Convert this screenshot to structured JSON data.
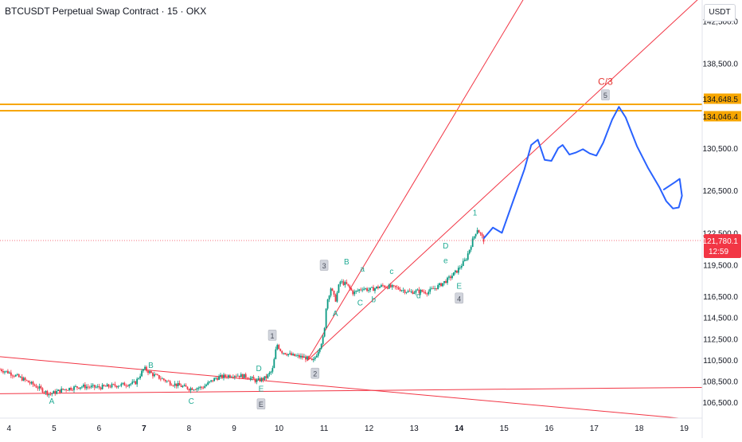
{
  "header": {
    "title": "BTCUSDT Perpetual Swap Contract · 15 · OKX",
    "currency": "USDT"
  },
  "colors": {
    "trendline": "#f23645",
    "horizontal": "#f7a600",
    "projection": "#2962ff",
    "candle_up": "#089981",
    "candle_down": "#f23645",
    "wave_label": "#22ab94",
    "wave_box": "#b2b5be",
    "wave_major": "#e53935"
  },
  "chart_data": {
    "type": "candlestick",
    "x_domain": [
      3.8,
      19.4
    ],
    "y_domain": [
      105000,
      144500
    ],
    "x_ticks": [
      {
        "x": 4,
        "label": "4",
        "bold": false
      },
      {
        "x": 5,
        "label": "5",
        "bold": false
      },
      {
        "x": 6,
        "label": "6",
        "bold": false
      },
      {
        "x": 7,
        "label": "7",
        "bold": true
      },
      {
        "x": 8,
        "label": "8",
        "bold": false
      },
      {
        "x": 9,
        "label": "9",
        "bold": false
      },
      {
        "x": 10,
        "label": "10",
        "bold": false
      },
      {
        "x": 11,
        "label": "11",
        "bold": false
      },
      {
        "x": 12,
        "label": "12",
        "bold": false
      },
      {
        "x": 13,
        "label": "13",
        "bold": false
      },
      {
        "x": 14,
        "label": "14",
        "bold": true
      },
      {
        "x": 15,
        "label": "15",
        "bold": false
      },
      {
        "x": 16,
        "label": "16",
        "bold": false
      },
      {
        "x": 17,
        "label": "17",
        "bold": false
      },
      {
        "x": 18,
        "label": "18",
        "bold": false
      },
      {
        "x": 19,
        "label": "19",
        "bold": false
      }
    ],
    "y_ticks": [
      {
        "v": 142500,
        "label": "142,500.0"
      },
      {
        "v": 138500,
        "label": "138,500.0"
      },
      {
        "v": 130500,
        "label": "130,500.0"
      },
      {
        "v": 126500,
        "label": "126,500.0"
      },
      {
        "v": 122500,
        "label": "122,500.0"
      },
      {
        "v": 119500,
        "label": "119,500.0"
      },
      {
        "v": 116500,
        "label": "116,500.0"
      },
      {
        "v": 114500,
        "label": "114,500.0"
      },
      {
        "v": 112500,
        "label": "112,500.0"
      },
      {
        "v": 110500,
        "label": "110,500.0"
      },
      {
        "v": 108500,
        "label": "108,500.0"
      },
      {
        "v": 106500,
        "label": "106,500.0"
      }
    ],
    "price_path": [
      [
        3.8,
        109600
      ],
      [
        4.0,
        109300
      ],
      [
        4.3,
        108700
      ],
      [
        4.6,
        108000
      ],
      [
        4.9,
        107250
      ],
      [
        5.2,
        107700
      ],
      [
        5.6,
        108000
      ],
      [
        6.0,
        107900
      ],
      [
        6.4,
        108100
      ],
      [
        6.8,
        108300
      ],
      [
        7.0,
        109700
      ],
      [
        7.2,
        109100
      ],
      [
        7.6,
        108300
      ],
      [
        8.0,
        107800
      ],
      [
        8.3,
        107900
      ],
      [
        8.6,
        108800
      ],
      [
        9.0,
        109100
      ],
      [
        9.3,
        108900
      ],
      [
        9.5,
        108500
      ],
      [
        9.7,
        108800
      ],
      [
        9.85,
        109500
      ],
      [
        9.95,
        112000
      ],
      [
        10.05,
        111300
      ],
      [
        10.3,
        110900
      ],
      [
        10.6,
        110700
      ],
      [
        10.75,
        110300
      ],
      [
        10.85,
        111200
      ],
      [
        11.0,
        112800
      ],
      [
        11.05,
        115800
      ],
      [
        11.15,
        117300
      ],
      [
        11.25,
        116100
      ],
      [
        11.35,
        117900
      ],
      [
        11.5,
        117600
      ],
      [
        11.65,
        116800
      ],
      [
        11.85,
        117300
      ],
      [
        12.0,
        117100
      ],
      [
        12.3,
        117500
      ],
      [
        12.6,
        117300
      ],
      [
        12.9,
        116900
      ],
      [
        13.1,
        117000
      ],
      [
        13.3,
        116900
      ],
      [
        13.55,
        117500
      ],
      [
        13.75,
        118100
      ],
      [
        13.95,
        118900
      ],
      [
        14.15,
        120000
      ],
      [
        14.3,
        121800
      ],
      [
        14.4,
        122900
      ],
      [
        14.55,
        121800
      ]
    ],
    "current_price": {
      "v": 121780.1,
      "label": "121,780.1",
      "countdown": "12:59"
    },
    "horizontal_levels": [
      {
        "v": 134648.5,
        "label": "134,648.5"
      },
      {
        "v": 134046.4,
        "label": "134,046.4"
      }
    ],
    "trendlines": [
      {
        "p1": [
          10.62,
          110400
        ],
        "p2": [
          15.63,
          146000
        ]
      },
      {
        "p1": [
          10.62,
          110400
        ],
        "p2": [
          19.8,
          146500
        ]
      },
      {
        "p1": [
          3.8,
          110800
        ],
        "p2": [
          19.4,
          104800
        ]
      },
      {
        "p1": [
          3.8,
          107300
        ],
        "p2": [
          19.4,
          107900
        ]
      }
    ],
    "projection": [
      [
        14.55,
        122000
      ],
      [
        14.75,
        123000
      ],
      [
        14.95,
        122500
      ],
      [
        15.2,
        125500
      ],
      [
        15.45,
        128500
      ],
      [
        15.6,
        130800
      ],
      [
        15.75,
        131300
      ],
      [
        15.9,
        129400
      ],
      [
        16.05,
        129300
      ],
      [
        16.2,
        130500
      ],
      [
        16.3,
        130800
      ],
      [
        16.45,
        129900
      ],
      [
        16.6,
        130100
      ],
      [
        16.75,
        130400
      ],
      [
        16.9,
        130000
      ],
      [
        17.05,
        129800
      ],
      [
        17.2,
        131000
      ],
      [
        17.4,
        133200
      ],
      [
        17.55,
        134400
      ],
      [
        17.7,
        133400
      ],
      [
        17.95,
        130700
      ],
      [
        18.2,
        128600
      ],
      [
        18.45,
        126800
      ],
      [
        18.6,
        125500
      ],
      [
        18.75,
        124800
      ],
      [
        18.88,
        124900
      ],
      [
        18.95,
        126000
      ],
      [
        18.9,
        127600
      ],
      [
        18.8,
        127300
      ],
      [
        18.55,
        126600
      ]
    ],
    "wave_labels": [
      {
        "x": 4.95,
        "y": 106600,
        "text": "A",
        "kind": "text"
      },
      {
        "x": 7.15,
        "y": 110000,
        "text": "B",
        "kind": "text"
      },
      {
        "x": 8.05,
        "y": 106600,
        "text": "C",
        "kind": "text"
      },
      {
        "x": 9.55,
        "y": 109700,
        "text": "D",
        "kind": "text"
      },
      {
        "x": 9.6,
        "y": 107800,
        "text": "E",
        "kind": "text"
      },
      {
        "x": 9.6,
        "y": 106300,
        "text": "E",
        "kind": "box"
      },
      {
        "x": 9.85,
        "y": 112800,
        "text": "1",
        "kind": "box"
      },
      {
        "x": 10.8,
        "y": 109200,
        "text": "2",
        "kind": "box"
      },
      {
        "x": 11.0,
        "y": 119400,
        "text": "3",
        "kind": "box"
      },
      {
        "x": 11.25,
        "y": 114900,
        "text": "A",
        "kind": "text"
      },
      {
        "x": 11.5,
        "y": 119800,
        "text": "B",
        "kind": "text"
      },
      {
        "x": 11.85,
        "y": 119100,
        "text": "a",
        "kind": "text"
      },
      {
        "x": 11.8,
        "y": 115900,
        "text": "C",
        "kind": "text"
      },
      {
        "x": 12.1,
        "y": 116200,
        "text": "b",
        "kind": "text"
      },
      {
        "x": 12.5,
        "y": 118900,
        "text": "c",
        "kind": "text"
      },
      {
        "x": 13.1,
        "y": 116600,
        "text": "d",
        "kind": "text"
      },
      {
        "x": 13.7,
        "y": 121300,
        "text": "D",
        "kind": "text"
      },
      {
        "x": 13.7,
        "y": 119900,
        "text": "e",
        "kind": "text"
      },
      {
        "x": 14.0,
        "y": 117500,
        "text": "E",
        "kind": "text"
      },
      {
        "x": 14.0,
        "y": 116300,
        "text": "4",
        "kind": "box"
      },
      {
        "x": 14.35,
        "y": 124400,
        "text": "1",
        "kind": "text"
      },
      {
        "x": 17.25,
        "y": 135500,
        "text": "5",
        "kind": "box"
      },
      {
        "x": 17.25,
        "y": 136800,
        "text": "C/3",
        "kind": "major"
      }
    ]
  }
}
